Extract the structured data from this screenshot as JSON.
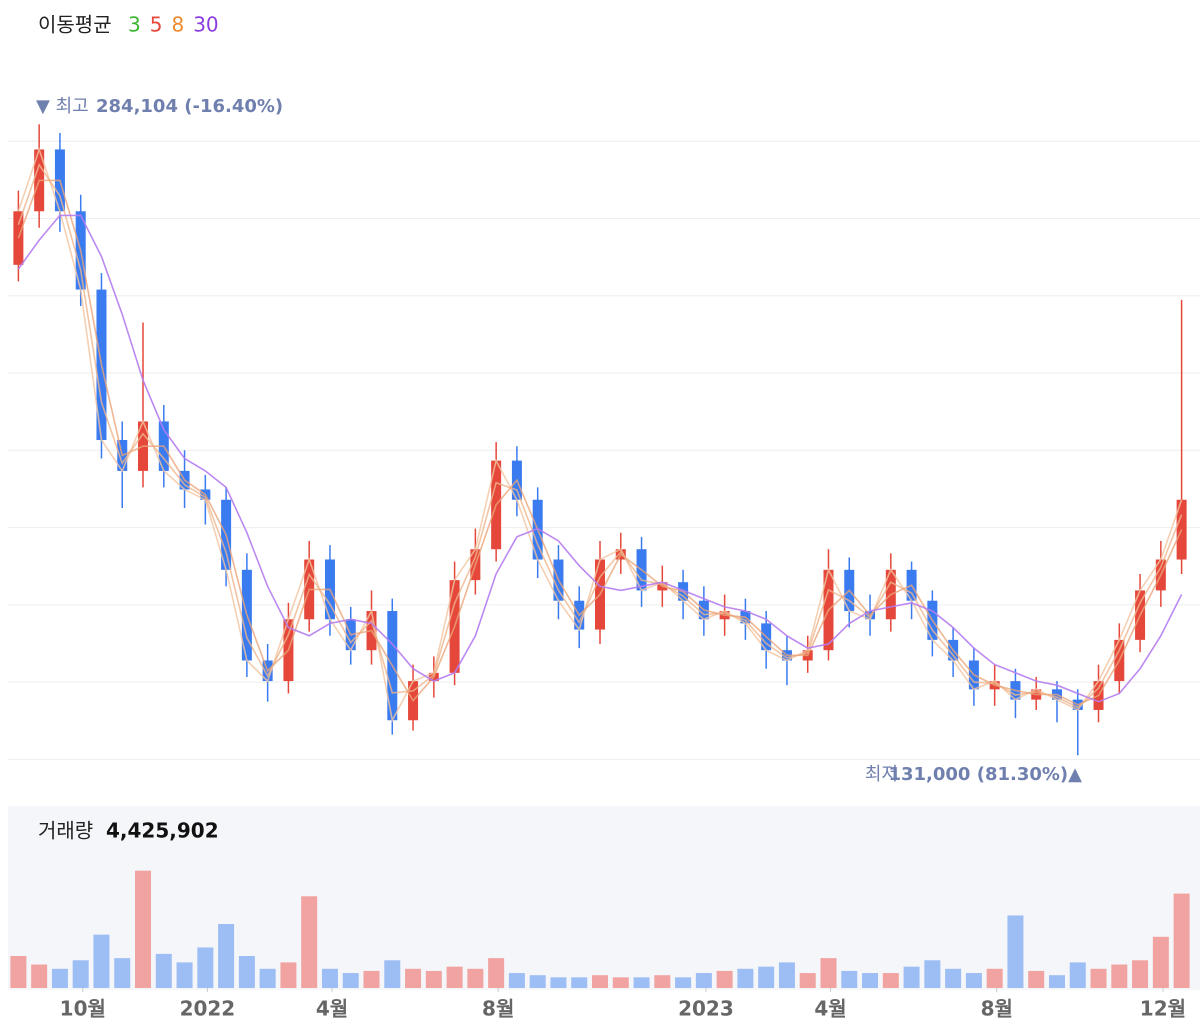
{
  "chart_data": [
    {
      "type": "candlestick",
      "legend_title": "이동평균",
      "high_label": "▼ 최고",
      "high_value": "284,104 (-16.40%)",
      "low_label": "최저",
      "low_value": "131,000 (81.30%)▲",
      "up_color": "#e5483b",
      "down_color": "#3a7bf0",
      "x": [
        -1.55,
        -1.05,
        -0.55,
        -0.05,
        0.45,
        0.95,
        1.45,
        1.95,
        2.45,
        2.95,
        3.45,
        3.95,
        4.45,
        4.95,
        5.45,
        5.95,
        6.45,
        6.95,
        7.45,
        7.95,
        8.45,
        8.95,
        9.45,
        9.95,
        10.45,
        10.95,
        11.45,
        11.95,
        12.45,
        12.95,
        13.45,
        13.95,
        14.45,
        14.95,
        15.45,
        15.95,
        16.45,
        16.95,
        17.45,
        17.95,
        18.45,
        18.95,
        19.45,
        19.95,
        20.45,
        20.95,
        21.45,
        21.95,
        22.45,
        22.95,
        23.45,
        23.95,
        24.45,
        24.95,
        25.45,
        25.95,
        26.45
      ],
      "open": [
        250000,
        263000,
        278000,
        263000,
        244000,
        207500,
        200000,
        212000,
        200000,
        195500,
        193000,
        176000,
        154000,
        149000,
        164000,
        178500,
        164000,
        156500,
        166000,
        139500,
        149000,
        151000,
        173500,
        181000,
        202500,
        193000,
        178500,
        168500,
        161500,
        178500,
        181000,
        171000,
        173000,
        168500,
        164000,
        166000,
        163000,
        156500,
        154000,
        156500,
        176000,
        166000,
        164000,
        176000,
        168500,
        159000,
        154000,
        147000,
        149000,
        144500,
        147000,
        144500,
        142000,
        149000,
        159000,
        171000,
        178500
      ],
      "high": [
        268000,
        284104,
        282000,
        267000,
        248000,
        212000,
        236000,
        216000,
        205000,
        199000,
        196000,
        180000,
        158000,
        168000,
        183000,
        182000,
        167000,
        171000,
        169000,
        153000,
        155000,
        178000,
        186000,
        207000,
        206000,
        196000,
        182000,
        172000,
        183000,
        185000,
        184000,
        177000,
        176000,
        172000,
        170000,
        169000,
        166000,
        160000,
        160000,
        181000,
        179000,
        170000,
        180000,
        178000,
        171000,
        162000,
        157000,
        153000,
        152000,
        150000,
        149000,
        147000,
        153000,
        163000,
        175000,
        183000,
        241500
      ],
      "low": [
        246000,
        259000,
        258000,
        240000,
        203000,
        191000,
        196000,
        196000,
        191000,
        187000,
        172000,
        150000,
        144000,
        146000,
        161000,
        160000,
        153000,
        153000,
        136000,
        137000,
        145000,
        148000,
        170000,
        178000,
        189000,
        174000,
        164000,
        157000,
        158000,
        175000,
        167000,
        167000,
        164000,
        160000,
        160000,
        159000,
        152000,
        148000,
        151000,
        154000,
        162000,
        160000,
        161000,
        164000,
        155000,
        150000,
        143000,
        143000,
        140000,
        142000,
        139000,
        131000,
        139000,
        146000,
        156000,
        167000,
        175000
      ],
      "close": [
        263000,
        278000,
        263000,
        244000,
        207500,
        200000,
        212000,
        200000,
        195500,
        193000,
        176000,
        154000,
        149000,
        164000,
        178500,
        164000,
        156500,
        166000,
        139500,
        149000,
        151000,
        173500,
        181000,
        202500,
        193000,
        178500,
        168500,
        161500,
        178500,
        181000,
        171000,
        173000,
        168500,
        164000,
        166000,
        163000,
        156500,
        154000,
        156500,
        176000,
        166000,
        164000,
        176000,
        168500,
        159000,
        154000,
        147000,
        149000,
        144500,
        147000,
        144500,
        142000,
        149000,
        159000,
        171000,
        178500,
        193000
      ],
      "series": [
        {
          "name": "3",
          "color": "#3cb531",
          "line_color": "#f2c4a0",
          "values": [
            263000,
            278000,
            263000,
            244000,
            207500,
            200000,
            212000,
            200000,
            195500,
            193000,
            176000,
            154000,
            149000,
            164000,
            178500,
            164000,
            156500,
            166000,
            139500,
            149000,
            151000,
            173500,
            181000,
            202500,
            193000,
            178500,
            168500,
            161500,
            178500,
            181000,
            171000,
            173000,
            168500,
            164000,
            166000,
            163000,
            156500,
            154000,
            156500,
            176000,
            166000,
            164000,
            176000,
            168500,
            159000,
            154000,
            147000,
            149000,
            144500,
            147000,
            144500,
            142000,
            149000,
            159000,
            171000,
            178500,
            193000
          ]
        },
        {
          "name": "5",
          "color": "#e5483b",
          "line_color": "#efb58c",
          "values": [
            259750,
            274250,
            266750,
            248750,
            216625,
            201875,
            209000,
            203000,
            196625,
            193625,
            180250,
            159500,
            150250,
            160250,
            174875,
            167625,
            158375,
            163625,
            146125,
            146625,
            150500,
            167875,
            179125,
            197125,
            195375,
            182125,
            171000,
            163250,
            174250,
            180375,
            173500,
            172500,
            169625,
            165125,
            165500,
            163750,
            158125,
            154625,
            155875,
            171125,
            168500,
            164500,
            173000,
            170375,
            161375,
            155250,
            148750,
            148500,
            145625,
            146375,
            145125,
            142625,
            147250,
            156500,
            168000,
            176625,
            189375
          ]
        },
        {
          "name": "8",
          "color": "#f0892c",
          "line_color": "#eba478",
          "values": [
            256500,
            270500,
            270500,
            253500,
            225750,
            203750,
            206000,
            206000,
            197750,
            194250,
            184500,
            165000,
            151500,
            156500,
            171250,
            171250,
            160250,
            161250,
            152750,
            144250,
            150000,
            162250,
            177250,
            191750,
            197750,
            185750,
            173500,
            165000,
            170000,
            179750,
            176000,
            172000,
            170750,
            166250,
            165000,
            164500,
            159750,
            155250,
            155250,
            166250,
            171000,
            165000,
            170000,
            172250,
            163750,
            156500,
            150500,
            148000,
            146750,
            145750,
            145750,
            143250,
            145500,
            154000,
            165000,
            174750,
            185750
          ]
        },
        {
          "name": "30",
          "color": "#8a3ee0",
          "line_color": "#b57cf0",
          "values": [
            249000,
            256000,
            262000,
            262000,
            252000,
            238000,
            222000,
            210000,
            203000,
            200000,
            196000,
            185000,
            172000,
            162000,
            160000,
            163000,
            164000,
            163000,
            158000,
            152000,
            149000,
            151000,
            160000,
            175000,
            184000,
            186000,
            183000,
            177000,
            172000,
            171000,
            172000,
            173000,
            171000,
            169000,
            167000,
            166000,
            164000,
            160000,
            157000,
            158000,
            163000,
            166000,
            167000,
            168000,
            166000,
            162000,
            157000,
            153000,
            151000,
            149000,
            148000,
            146000,
            144000,
            146000,
            152000,
            160000,
            170000
          ]
        }
      ],
      "xlim": [
        -1.8,
        26.7
      ],
      "ylim": [
        125000,
        290000
      ],
      "yticks": [
        130000,
        148750,
        167500,
        186250,
        205000,
        223750,
        242500,
        261250,
        280000
      ],
      "grid": true
    },
    {
      "type": "bar",
      "title": "거래량",
      "value_label": "4,425,902",
      "up_color": "#f0a3a0",
      "down_color": "#9dbdf5",
      "x": [
        -1.55,
        -1.05,
        -0.55,
        -0.05,
        0.45,
        0.95,
        1.45,
        1.95,
        2.45,
        2.95,
        3.45,
        3.95,
        4.45,
        4.95,
        5.45,
        5.95,
        6.45,
        6.95,
        7.45,
        7.95,
        8.45,
        8.95,
        9.45,
        9.95,
        10.45,
        10.95,
        11.45,
        11.95,
        12.45,
        12.95,
        13.45,
        13.95,
        14.45,
        14.95,
        15.45,
        15.95,
        16.45,
        16.95,
        17.45,
        17.95,
        18.45,
        18.95,
        19.45,
        19.95,
        20.45,
        20.95,
        21.45,
        21.95,
        22.45,
        22.95,
        23.45,
        23.95,
        24.45,
        24.95,
        25.45,
        25.95,
        26.45
      ],
      "values": [
        1500000,
        1100000,
        900000,
        1300000,
        2500000,
        1400000,
        5500000,
        1600000,
        1200000,
        1900000,
        3000000,
        1500000,
        900000,
        1200000,
        4300000,
        900000,
        700000,
        800000,
        1300000,
        900000,
        800000,
        1000000,
        900000,
        1400000,
        700000,
        600000,
        500000,
        500000,
        600000,
        500000,
        500000,
        600000,
        500000,
        700000,
        800000,
        900000,
        1000000,
        1200000,
        700000,
        1400000,
        800000,
        700000,
        700000,
        1000000,
        1300000,
        900000,
        700000,
        900000,
        3400000,
        800000,
        600000,
        1200000,
        900000,
        1100000,
        1300000,
        2400000,
        4425902
      ],
      "xlim": [
        -1.8,
        26.7
      ],
      "ylim": [
        0,
        6000000
      ],
      "xticks": [
        {
          "value": 0,
          "label": "10월"
        },
        {
          "value": 3,
          "label": "2022"
        },
        {
          "value": 6,
          "label": "4월"
        },
        {
          "value": 10,
          "label": "8월"
        },
        {
          "value": 15,
          "label": "2023"
        },
        {
          "value": 18,
          "label": "4월"
        },
        {
          "value": 22,
          "label": "8월"
        },
        {
          "value": 26,
          "label": "12월"
        }
      ]
    }
  ]
}
